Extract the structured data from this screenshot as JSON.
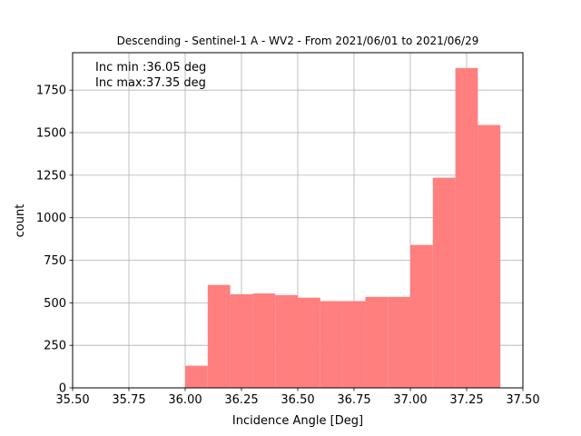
{
  "chart_data": {
    "type": "bar",
    "title": "Descending - Sentinel-1 A - WV2 - From 2021/06/01 to 2021/06/29",
    "xlabel": "Incidence Angle [Deg]",
    "ylabel": "count",
    "xlim": [
      35.5,
      37.5
    ],
    "ylim": [
      0,
      1970
    ],
    "grid": true,
    "bar_color": "#ff7f7f",
    "x_ticks": [
      "35.50",
      "35.75",
      "36.00",
      "36.25",
      "36.50",
      "36.75",
      "37.00",
      "37.25",
      "37.50"
    ],
    "y_ticks": [
      "0",
      "250",
      "500",
      "750",
      "1000",
      "1250",
      "1500",
      "1750"
    ],
    "bins": [
      {
        "x0": 36.0,
        "x1": 36.1,
        "count": 130
      },
      {
        "x0": 36.1,
        "x1": 36.2,
        "count": 605
      },
      {
        "x0": 36.2,
        "x1": 36.3,
        "count": 550
      },
      {
        "x0": 36.3,
        "x1": 36.4,
        "count": 555
      },
      {
        "x0": 36.4,
        "x1": 36.5,
        "count": 545
      },
      {
        "x0": 36.5,
        "x1": 36.6,
        "count": 530
      },
      {
        "x0": 36.6,
        "x1": 36.7,
        "count": 510
      },
      {
        "x0": 36.7,
        "x1": 36.8,
        "count": 510
      },
      {
        "x0": 36.8,
        "x1": 36.9,
        "count": 535
      },
      {
        "x0": 36.9,
        "x1": 37.0,
        "count": 535
      },
      {
        "x0": 37.0,
        "x1": 37.1,
        "count": 840
      },
      {
        "x0": 37.1,
        "x1": 37.2,
        "count": 1235
      },
      {
        "x0": 37.2,
        "x1": 37.3,
        "count": 1880
      },
      {
        "x0": 37.3,
        "x1": 37.4,
        "count": 1545
      }
    ],
    "annotations": [
      "Inc min :36.05 deg",
      "Inc max:37.35 deg"
    ]
  }
}
